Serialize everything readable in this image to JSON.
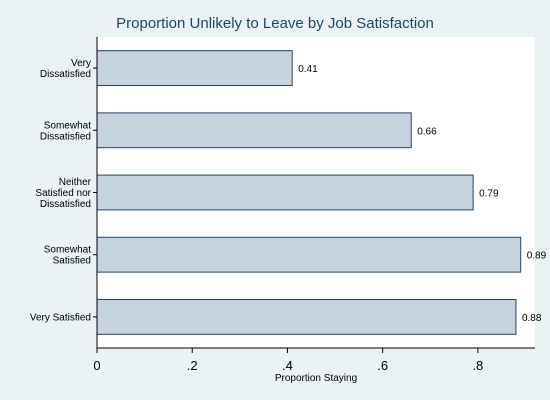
{
  "chart_data": {
    "type": "bar",
    "orientation": "horizontal",
    "title": "Proportion Unlikely to Leave by Job Satisfaction",
    "xlabel": "Proportion Staying",
    "ylabel": "",
    "categories": [
      [
        "Very",
        "Dissatisfied"
      ],
      [
        "Somewhat",
        "Dissatisfied"
      ],
      [
        "Neither",
        "Satisfied nor",
        "Dissatisfied"
      ],
      [
        "Somewhat",
        "Satisfied"
      ],
      [
        "Very Satisfied"
      ]
    ],
    "values": [
      0.41,
      0.66,
      0.79,
      0.89,
      0.88
    ],
    "value_labels": [
      "0.41",
      "0.66",
      "0.79",
      "0.89",
      "0.88"
    ],
    "xlim": [
      0,
      0.92
    ],
    "xticks": [
      0,
      0.2,
      0.4,
      0.6,
      0.8
    ],
    "xtick_labels": [
      "0",
      ".2",
      ".4",
      ".6",
      ".8"
    ],
    "grid": false,
    "legend": "none",
    "colors": {
      "background": "#eaf2f3",
      "plot_background": "#ffffff",
      "bar_fill": "#c6d2dd",
      "bar_stroke": "#1a476f",
      "title": "#1a476f"
    }
  }
}
